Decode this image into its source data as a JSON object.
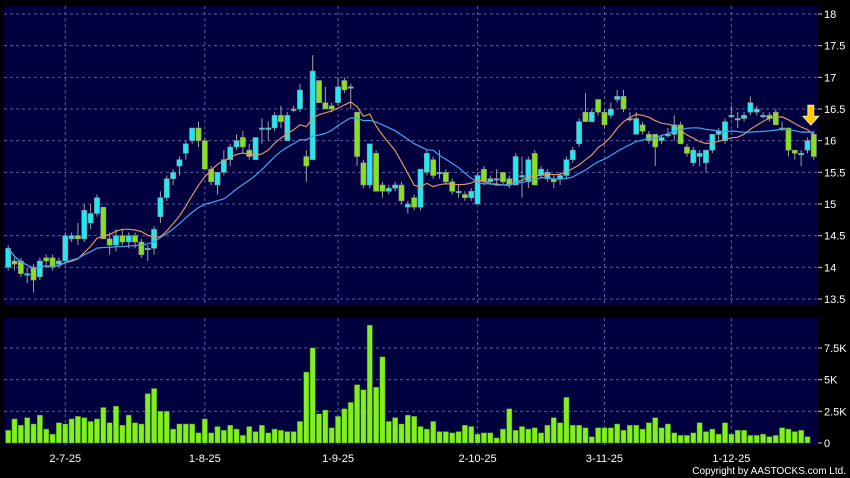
{
  "chart_data": [
    {
      "type": "candlestick",
      "ylim": [
        13.5,
        18
      ],
      "yticks": [
        "18",
        "17.5",
        "17",
        "16.5",
        "16",
        "15.5",
        "15",
        "14.5",
        "14",
        "13.5"
      ],
      "ytick_values": [
        18,
        17.5,
        17,
        16.5,
        16,
        15.5,
        15,
        14.5,
        14,
        13.5
      ],
      "grid": true,
      "up_color": "#22e8f2",
      "down_color": "#86e21e",
      "moving_averages": [
        {
          "period": 10,
          "color": "#e4935e"
        },
        {
          "period": 20,
          "color": "#3ea6ee"
        }
      ],
      "marker": {
        "icon": "down-arrow-icon",
        "color": "#ffcc00",
        "at": "last"
      },
      "ohlc": [
        [
          14.0,
          14.35,
          13.95,
          14.3
        ],
        [
          14.1,
          14.15,
          13.95,
          14.05
        ],
        [
          14.1,
          14.15,
          13.85,
          13.9
        ],
        [
          13.9,
          14.0,
          13.75,
          13.9
        ],
        [
          14.0,
          14.05,
          13.6,
          13.8
        ],
        [
          13.85,
          14.15,
          13.8,
          14.1
        ],
        [
          14.15,
          14.2,
          14.0,
          14.1
        ],
        [
          14.15,
          14.2,
          13.95,
          14.0
        ],
        [
          14.05,
          14.15,
          14.0,
          14.1
        ],
        [
          14.1,
          14.55,
          14.05,
          14.5
        ],
        [
          14.45,
          14.55,
          14.4,
          14.5
        ],
        [
          14.5,
          14.7,
          14.35,
          14.45
        ],
        [
          14.45,
          15.0,
          14.4,
          14.9
        ],
        [
          14.7,
          15.0,
          14.6,
          14.85
        ],
        [
          14.85,
          15.15,
          14.8,
          15.1
        ],
        [
          14.95,
          14.95,
          14.45,
          14.45
        ],
        [
          14.45,
          14.55,
          14.2,
          14.35
        ],
        [
          14.35,
          14.6,
          14.25,
          14.5
        ],
        [
          14.5,
          14.6,
          14.35,
          14.4
        ],
        [
          14.4,
          14.55,
          14.3,
          14.5
        ],
        [
          14.5,
          14.55,
          14.3,
          14.4
        ],
        [
          14.4,
          14.45,
          14.15,
          14.2
        ],
        [
          14.3,
          14.35,
          14.1,
          14.3
        ],
        [
          14.3,
          14.65,
          14.2,
          14.6
        ],
        [
          14.8,
          15.2,
          14.7,
          15.1
        ],
        [
          15.1,
          15.45,
          15.05,
          15.4
        ],
        [
          15.4,
          15.55,
          15.3,
          15.5
        ],
        [
          15.6,
          15.75,
          15.45,
          15.7
        ],
        [
          15.8,
          16.0,
          15.7,
          15.95
        ],
        [
          16.0,
          16.2,
          15.95,
          16.2
        ],
        [
          16.2,
          16.3,
          15.9,
          16.0
        ],
        [
          16.0,
          16.05,
          15.55,
          15.55
        ],
        [
          15.55,
          15.6,
          15.3,
          15.35
        ],
        [
          15.3,
          15.5,
          15.15,
          15.5
        ],
        [
          15.5,
          15.85,
          15.45,
          15.7
        ],
        [
          15.7,
          15.95,
          15.6,
          15.9
        ],
        [
          15.9,
          16.1,
          15.85,
          16.0
        ],
        [
          16.05,
          16.15,
          15.8,
          15.9
        ],
        [
          15.85,
          15.95,
          15.7,
          15.75
        ],
        [
          15.7,
          16.05,
          15.7,
          16.05
        ],
        [
          16.2,
          16.35,
          15.95,
          16.2
        ],
        [
          16.2,
          16.3,
          16.0,
          16.2
        ],
        [
          16.2,
          16.45,
          16.15,
          16.4
        ],
        [
          16.4,
          16.55,
          16.2,
          16.3
        ],
        [
          16.0,
          16.45,
          16.0,
          16.4
        ],
        [
          16.5,
          16.55,
          16.45,
          16.5
        ],
        [
          16.5,
          16.9,
          16.45,
          16.8
        ],
        [
          15.75,
          15.85,
          15.35,
          15.6
        ],
        [
          15.7,
          17.35,
          15.7,
          17.1
        ],
        [
          16.95,
          16.95,
          16.6,
          16.6
        ],
        [
          16.6,
          16.85,
          16.5,
          16.5
        ],
        [
          16.55,
          16.6,
          16.45,
          16.5
        ],
        [
          16.6,
          17.0,
          16.55,
          16.85
        ],
        [
          16.95,
          17.0,
          16.75,
          16.8
        ],
        [
          16.85,
          16.9,
          16.5,
          16.85
        ],
        [
          16.45,
          16.45,
          15.6,
          15.75
        ],
        [
          15.65,
          15.7,
          15.25,
          15.3
        ],
        [
          15.3,
          15.95,
          15.25,
          15.95
        ],
        [
          15.8,
          15.85,
          15.2,
          15.2
        ],
        [
          15.3,
          15.35,
          15.1,
          15.2
        ],
        [
          15.2,
          15.3,
          15.15,
          15.25
        ],
        [
          15.25,
          15.35,
          15.2,
          15.3
        ],
        [
          15.3,
          15.35,
          15.0,
          15.05
        ],
        [
          14.95,
          15.05,
          14.85,
          15.0
        ],
        [
          15.1,
          15.15,
          14.9,
          14.95
        ],
        [
          14.95,
          15.55,
          14.9,
          15.55
        ],
        [
          15.5,
          15.85,
          15.45,
          15.8
        ],
        [
          15.7,
          15.75,
          15.4,
          15.45
        ],
        [
          15.5,
          15.85,
          15.4,
          15.5
        ],
        [
          15.5,
          15.55,
          15.3,
          15.35
        ],
        [
          15.35,
          15.4,
          15.15,
          15.2
        ],
        [
          15.2,
          15.3,
          15.1,
          15.2
        ],
        [
          15.15,
          15.2,
          15.05,
          15.1
        ],
        [
          15.1,
          15.25,
          15.05,
          15.2
        ],
        [
          15.0,
          15.5,
          15.0,
          15.45
        ],
        [
          15.55,
          15.6,
          15.3,
          15.35
        ],
        [
          15.35,
          15.45,
          15.3,
          15.4
        ],
        [
          15.4,
          15.55,
          15.3,
          15.4
        ],
        [
          15.5,
          15.5,
          15.3,
          15.35
        ],
        [
          15.4,
          15.45,
          15.25,
          15.3
        ],
        [
          15.3,
          15.8,
          15.3,
          15.75
        ],
        [
          15.45,
          15.75,
          15.1,
          15.45
        ],
        [
          15.35,
          15.75,
          15.25,
          15.7
        ],
        [
          15.8,
          15.85,
          15.3,
          15.3
        ],
        [
          15.45,
          15.6,
          15.4,
          15.55
        ],
        [
          15.4,
          15.55,
          15.35,
          15.5
        ],
        [
          15.4,
          15.45,
          15.25,
          15.35
        ],
        [
          15.4,
          15.5,
          15.3,
          15.45
        ],
        [
          15.45,
          15.75,
          15.4,
          15.7
        ],
        [
          15.7,
          15.9,
          15.65,
          15.85
        ],
        [
          15.95,
          16.35,
          15.9,
          16.3
        ],
        [
          16.45,
          16.75,
          16.3,
          16.3
        ],
        [
          16.3,
          16.5,
          16.3,
          16.45
        ],
        [
          16.65,
          16.65,
          16.4,
          16.45
        ],
        [
          16.45,
          16.5,
          16.2,
          16.25
        ],
        [
          16.4,
          16.6,
          16.35,
          16.5
        ],
        [
          16.65,
          16.8,
          16.6,
          16.7
        ],
        [
          16.7,
          16.8,
          16.45,
          16.5
        ],
        [
          16.35,
          16.45,
          16.3,
          16.35
        ],
        [
          16.1,
          16.45,
          16.1,
          16.35
        ],
        [
          16.25,
          16.3,
          16.1,
          16.15
        ],
        [
          16.1,
          16.15,
          15.95,
          16.0
        ],
        [
          16.1,
          16.1,
          15.6,
          15.9
        ],
        [
          16.0,
          16.1,
          15.95,
          16.05
        ],
        [
          16.1,
          16.2,
          16.05,
          16.1
        ],
        [
          16.1,
          16.4,
          16.0,
          16.25
        ],
        [
          16.25,
          16.3,
          15.95,
          15.95
        ],
        [
          15.9,
          15.95,
          15.75,
          15.8
        ],
        [
          15.65,
          15.9,
          15.6,
          15.85
        ],
        [
          15.75,
          15.85,
          15.6,
          15.8
        ],
        [
          15.65,
          15.85,
          15.5,
          15.85
        ],
        [
          15.85,
          16.1,
          15.8,
          16.1
        ],
        [
          16.1,
          16.2,
          16.0,
          16.15
        ],
        [
          16.0,
          16.35,
          15.95,
          16.3
        ],
        [
          16.4,
          16.55,
          16.35,
          16.4
        ],
        [
          16.35,
          16.45,
          16.2,
          16.35
        ],
        [
          16.35,
          16.45,
          16.3,
          16.4
        ],
        [
          16.45,
          16.7,
          16.4,
          16.6
        ],
        [
          16.45,
          16.55,
          16.4,
          16.5
        ],
        [
          16.4,
          16.45,
          16.35,
          16.4
        ],
        [
          16.4,
          16.45,
          16.3,
          16.35
        ],
        [
          16.45,
          16.5,
          16.25,
          16.25
        ],
        [
          16.2,
          16.3,
          16.15,
          16.2
        ],
        [
          16.2,
          16.2,
          15.75,
          15.85
        ],
        [
          15.85,
          15.85,
          15.7,
          15.8
        ],
        [
          15.8,
          15.85,
          15.6,
          15.8
        ],
        [
          15.85,
          16.05,
          15.8,
          16.0
        ],
        [
          16.1,
          16.15,
          15.7,
          15.75
        ]
      ]
    },
    {
      "type": "bar",
      "ylim": [
        0,
        9.5
      ],
      "yunit": "K",
      "yticks": [
        "7.5K",
        "5K",
        "2.5K",
        "0"
      ],
      "ytick_values": [
        7.5,
        5,
        2.5,
        0
      ],
      "grid": true,
      "bar_color": "#80f020",
      "values": [
        1.0,
        1.9,
        1.4,
        2.0,
        1.5,
        2.2,
        1.1,
        0.7,
        1.6,
        1.5,
        1.9,
        2.1,
        2.0,
        1.7,
        1.9,
        2.8,
        1.6,
        2.9,
        1.4,
        2.2,
        1.6,
        1.5,
        3.9,
        4.3,
        2.5,
        2.5,
        1.1,
        1.5,
        1.5,
        1.5,
        0.8,
        1.9,
        0.8,
        1.3,
        1.0,
        1.4,
        1.1,
        0.6,
        1.3,
        0.9,
        1.4,
        0.8,
        1.1,
        1.0,
        0.9,
        0.9,
        1.7,
        5.6,
        7.5,
        2.3,
        2.6,
        1.2,
        2.1,
        2.7,
        3.2,
        4.6,
        4.2,
        9.3,
        4.4,
        6.8,
        1.7,
        2.0,
        1.5,
        2.2,
        2.1,
        1.3,
        1.1,
        1.7,
        0.9,
        0.9,
        0.8,
        0.9,
        1.4,
        1.3,
        0.7,
        0.8,
        0.8,
        0.4,
        1.1,
        2.7,
        1.0,
        1.3,
        1.1,
        1.2,
        0.8,
        1.4,
        2.0,
        1.6,
        3.6,
        1.4,
        1.4,
        1.2,
        0.5,
        1.2,
        1.2,
        1.2,
        1.5,
        1.0,
        1.4,
        1.4,
        1.1,
        1.6,
        2.0,
        1.2,
        1.5,
        0.8,
        0.6,
        0.6,
        0.8,
        1.6,
        0.9,
        1.1,
        0.7,
        1.6,
        0.7,
        1.0,
        1.0,
        0.6,
        0.6,
        0.7,
        0.5,
        0.6,
        1.2,
        1.1,
        0.9,
        1.0,
        0.5
      ]
    }
  ],
  "x_axis": {
    "ticks": [
      {
        "label": "2-7-25",
        "index": 9
      },
      {
        "label": "1-8-25",
        "index": 31
      },
      {
        "label": "1-9-25",
        "index": 52
      },
      {
        "label": "2-10-25",
        "index": 74
      },
      {
        "label": "3-11-25",
        "index": 94
      },
      {
        "label": "1-12-25",
        "index": 114
      }
    ]
  },
  "copyright": "Copyright by AASTOCKS.com Ltd."
}
